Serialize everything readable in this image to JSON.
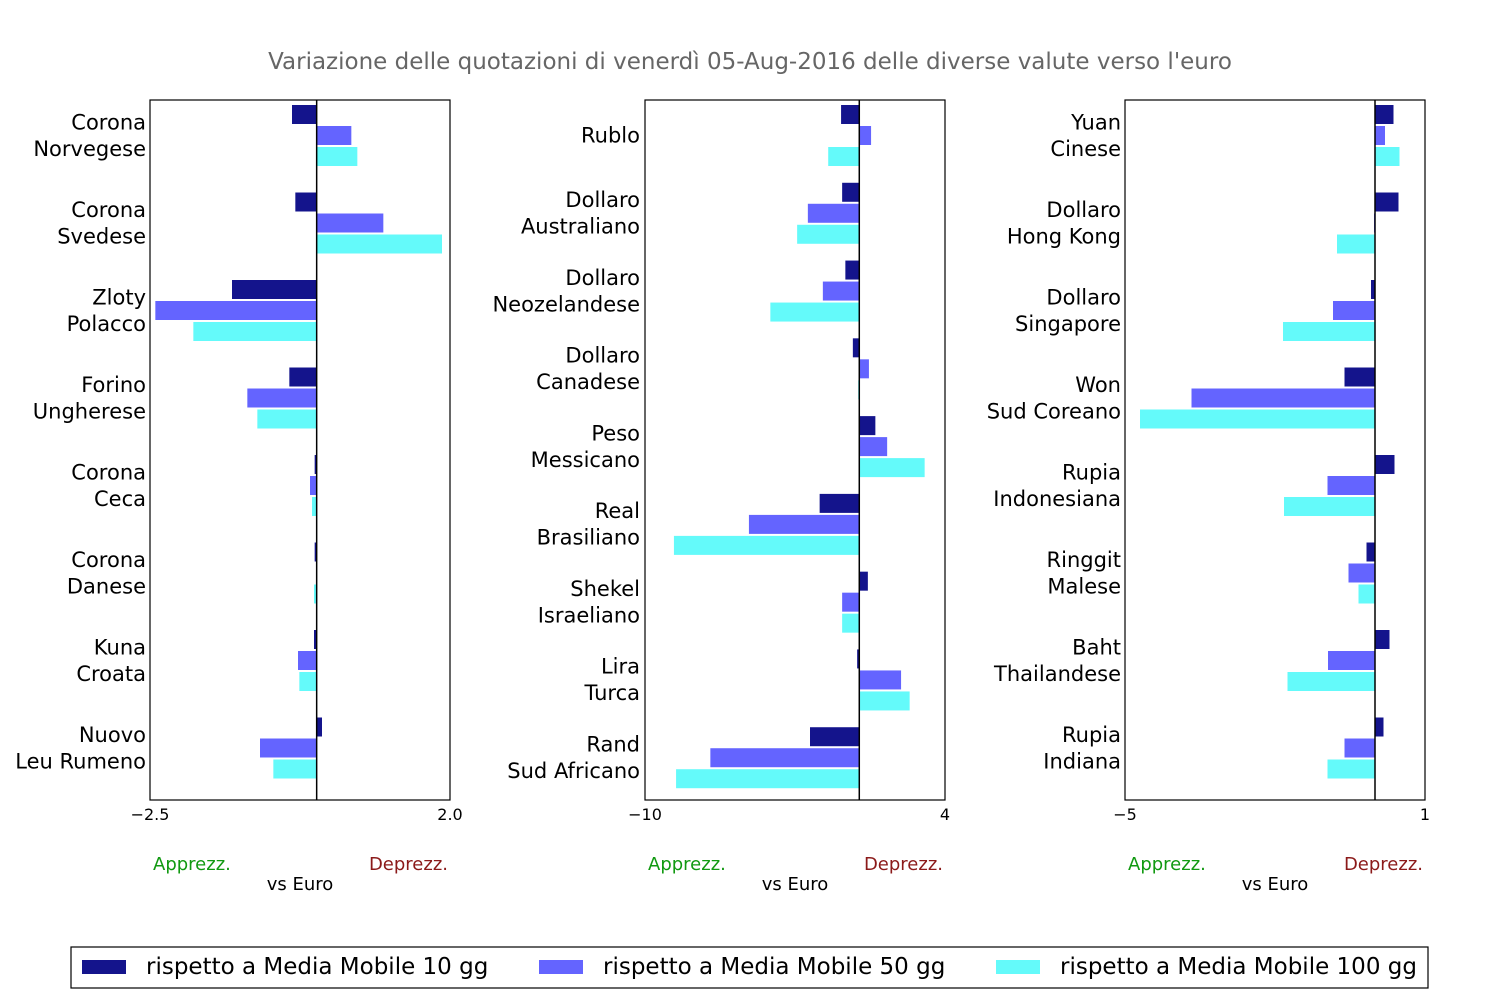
{
  "chart_data": {
    "type": "bar",
    "orientation": "horizontal",
    "title": "Variazione delle quotazioni di venerdì 05-Aug-2016 delle diverse valute verso l'euro",
    "series_names": [
      "rispetto a Media Mobile 10 gg",
      "rispetto a Media Mobile 50 gg",
      "rispetto a Media Mobile 100 gg"
    ],
    "colors": {
      "ma10": "#14148c",
      "ma50": "#6464ff",
      "ma100": "#64fafa",
      "appreciation": "#119911",
      "depreciation": "#8b1a1a",
      "title": "#666666"
    },
    "panels": [
      {
        "xlim": [
          -2.5,
          2.0
        ],
        "tick_labels": [
          "−2.5",
          "2.0"
        ],
        "xlabel": "vs Euro",
        "label_left": "Apprezz.",
        "label_right": "Deprezz.",
        "categories": [
          {
            "name": [
              "Corona",
              "Norvegese"
            ],
            "values": [
              -0.37,
              0.52,
              0.61
            ]
          },
          {
            "name": [
              "Corona",
              "Svedese"
            ],
            "values": [
              -0.32,
              1.0,
              1.88
            ]
          },
          {
            "name": [
              "Zloty",
              "Polacco"
            ],
            "values": [
              -1.27,
              -2.42,
              -1.85
            ]
          },
          {
            "name": [
              "Forino",
              "Ungherese"
            ],
            "values": [
              -0.41,
              -1.04,
              -0.89
            ]
          },
          {
            "name": [
              "Corona",
              "Ceca"
            ],
            "values": [
              -0.03,
              -0.1,
              -0.07
            ]
          },
          {
            "name": [
              "Corona",
              "Danese"
            ],
            "values": [
              -0.03,
              -0.01,
              -0.04
            ]
          },
          {
            "name": [
              "Kuna",
              "Croata"
            ],
            "values": [
              -0.04,
              -0.28,
              -0.26
            ]
          },
          {
            "name": [
              "Nuovo",
              "Leu Rumeno"
            ],
            "values": [
              0.08,
              -0.85,
              -0.65
            ]
          }
        ]
      },
      {
        "xlim": [
          -10,
          4
        ],
        "tick_labels": [
          "−10",
          "4"
        ],
        "xlabel": "vs Euro",
        "label_left": "Apprezz.",
        "label_right": "Deprezz.",
        "categories": [
          {
            "name": [
              "Rublo"
            ],
            "values": [
              -0.85,
              0.55,
              -1.45
            ]
          },
          {
            "name": [
              "Dollaro",
              "Australiano"
            ],
            "values": [
              -0.8,
              -2.4,
              -2.9
            ]
          },
          {
            "name": [
              "Dollaro",
              "Neozelandese"
            ],
            "values": [
              -0.65,
              -1.7,
              -4.15
            ]
          },
          {
            "name": [
              "Dollaro",
              "Canadese"
            ],
            "values": [
              -0.3,
              0.45,
              -0.05
            ]
          },
          {
            "name": [
              "Peso",
              "Messicano"
            ],
            "values": [
              0.75,
              1.3,
              3.05
            ]
          },
          {
            "name": [
              "Real",
              "Brasiliano"
            ],
            "values": [
              -1.85,
              -5.15,
              -8.65
            ]
          },
          {
            "name": [
              "Shekel",
              "Israeliano"
            ],
            "values": [
              0.4,
              -0.8,
              -0.8
            ]
          },
          {
            "name": [
              "Lira",
              "Turca"
            ],
            "values": [
              -0.1,
              1.95,
              2.35
            ]
          },
          {
            "name": [
              "Rand",
              "Sud Africano"
            ],
            "values": [
              -2.3,
              -6.95,
              -8.55
            ]
          }
        ]
      },
      {
        "xlim": [
          -5,
          1
        ],
        "tick_labels": [
          "−5",
          "1"
        ],
        "xlabel": "vs Euro",
        "label_left": "Apprezz.",
        "label_right": "Deprezz.",
        "categories": [
          {
            "name": [
              "Yuan",
              "Cinese"
            ],
            "values": [
              0.37,
              0.2,
              0.49
            ]
          },
          {
            "name": [
              "Dollaro",
              "Hong Kong"
            ],
            "values": [
              0.47,
              -0.02,
              -0.76
            ]
          },
          {
            "name": [
              "Dollaro",
              "Singapore"
            ],
            "values": [
              -0.08,
              -0.84,
              -1.84
            ]
          },
          {
            "name": [
              "Won",
              "Sud Coreano"
            ],
            "values": [
              -0.61,
              -3.67,
              -4.7
            ]
          },
          {
            "name": [
              "Rupia",
              "Indonesiana"
            ],
            "values": [
              0.39,
              -0.95,
              -1.82
            ]
          },
          {
            "name": [
              "Ringgit",
              "Malese"
            ],
            "values": [
              -0.17,
              -0.53,
              -0.33
            ]
          },
          {
            "name": [
              "Baht",
              "Thailandese"
            ],
            "values": [
              0.29,
              -0.94,
              -1.75
            ]
          },
          {
            "name": [
              "Rupia",
              "Indiana"
            ],
            "values": [
              0.17,
              -0.61,
              -0.95
            ]
          }
        ]
      }
    ]
  }
}
